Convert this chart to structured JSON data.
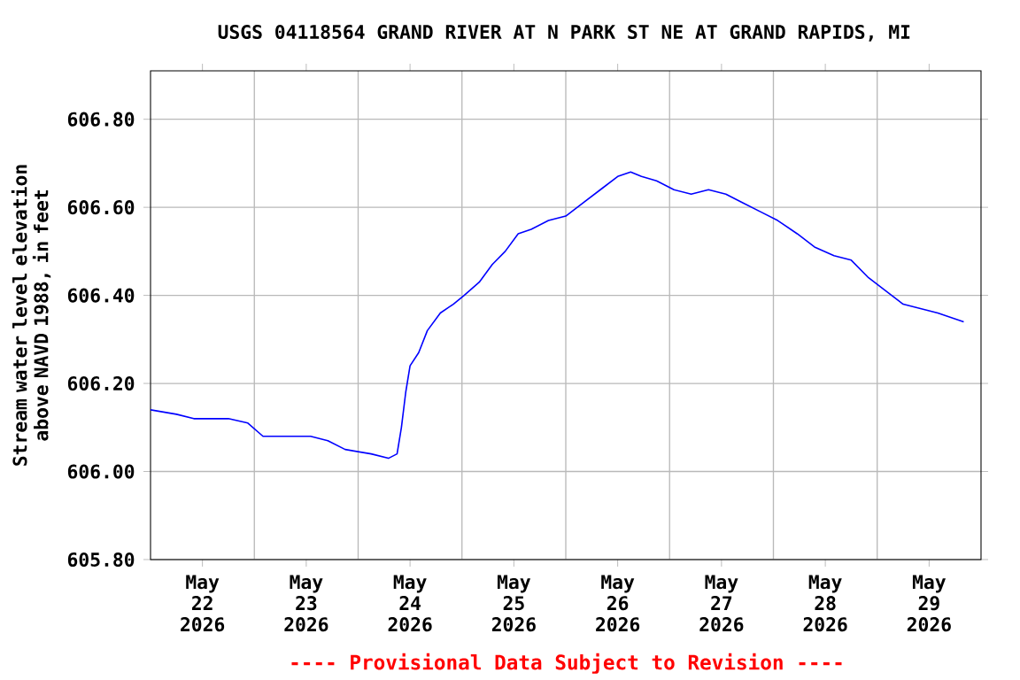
{
  "chart_data": {
    "type": "line",
    "title": "USGS 04118564 GRAND RIVER AT N PARK ST NE AT GRAND RAPIDS, MI",
    "ylabel": "Stream water level elevation above NAVD 1988, in feet",
    "annotations": [
      "---- Provisional Data Subject to Revision ----"
    ],
    "x": [
      "2026-05-22T00:00",
      "2026-05-22T06:00",
      "2026-05-22T10:00",
      "2026-05-22T18:00",
      "2026-05-22T22:30",
      "2026-05-23T02:00",
      "2026-05-23T07:00",
      "2026-05-23T13:00",
      "2026-05-23T17:00",
      "2026-05-23T21:00",
      "2026-05-24T03:00",
      "2026-05-24T07:00",
      "2026-05-24T09:00",
      "2026-05-24T10:00",
      "2026-05-24T11:00",
      "2026-05-24T12:00",
      "2026-05-24T14:00",
      "2026-05-24T16:00",
      "2026-05-24T19:00",
      "2026-05-24T22:00",
      "2026-05-25T00:30",
      "2026-05-25T04:00",
      "2026-05-25T07:00",
      "2026-05-25T10:00",
      "2026-05-25T13:00",
      "2026-05-25T16:00",
      "2026-05-25T20:00",
      "2026-05-26T00:00",
      "2026-05-26T04:00",
      "2026-05-26T08:00",
      "2026-05-26T12:00",
      "2026-05-26T15:00",
      "2026-05-26T17:30",
      "2026-05-26T21:00",
      "2026-05-27T01:00",
      "2026-05-27T05:00",
      "2026-05-27T09:00",
      "2026-05-27T13:00",
      "2026-05-27T17:00",
      "2026-05-27T21:00",
      "2026-05-28T01:00",
      "2026-05-28T05:30",
      "2026-05-28T09:30",
      "2026-05-28T14:00",
      "2026-05-28T18:00",
      "2026-05-28T22:00",
      "2026-05-29T02:00",
      "2026-05-29T06:00",
      "2026-05-29T10:00",
      "2026-05-29T14:00",
      "2026-05-29T17:00",
      "2026-05-29T20:00"
    ],
    "series": [
      {
        "color": "#0000ff",
        "values": [
          606.14,
          606.13,
          606.12,
          606.12,
          606.11,
          606.08,
          606.08,
          606.08,
          606.07,
          606.05,
          606.04,
          606.03,
          606.04,
          606.1,
          606.18,
          606.24,
          606.27,
          606.32,
          606.36,
          606.38,
          606.4,
          606.43,
          606.47,
          606.5,
          606.54,
          606.55,
          606.57,
          606.58,
          606.61,
          606.64,
          606.67,
          606.68,
          606.67,
          606.66,
          606.64,
          606.63,
          606.64,
          606.63,
          606.61,
          606.59,
          606.57,
          606.54,
          606.51,
          606.49,
          606.48,
          606.44,
          606.41,
          606.38,
          606.37,
          606.36,
          606.35,
          606.34
        ]
      }
    ],
    "xlim": [
      "2026-05-22T00:00",
      "2026-05-30T00:00"
    ],
    "xticks": [
      {
        "value": "2026-05-22T12:00",
        "label": "May 22 2026"
      },
      {
        "value": "2026-05-23T00:00",
        "label": null
      },
      {
        "value": "2026-05-23T12:00",
        "label": "May 23 2026"
      },
      {
        "value": "2026-05-24T00:00",
        "label": null
      },
      {
        "value": "2026-05-24T12:00",
        "label": "May 24 2026"
      },
      {
        "value": "2026-05-25T00:00",
        "label": null
      },
      {
        "value": "2026-05-25T12:00",
        "label": "May 25 2026"
      },
      {
        "value": "2026-05-26T00:00",
        "label": null
      },
      {
        "value": "2026-05-26T12:00",
        "label": "May 26 2026"
      },
      {
        "value": "2026-05-27T00:00",
        "label": null
      },
      {
        "value": "2026-05-27T12:00",
        "label": "May 27 2026"
      },
      {
        "value": "2026-05-28T00:00",
        "label": null
      },
      {
        "value": "2026-05-28T12:00",
        "label": "May 28 2026"
      },
      {
        "value": "2026-05-29T00:00",
        "label": null
      },
      {
        "value": "2026-05-29T12:00",
        "label": "May 29 2026"
      }
    ],
    "ylim": [
      605.8,
      606.91
    ],
    "yticks": [
      {
        "value": 605.8,
        "label": "605.80"
      },
      {
        "value": 606.0,
        "label": "606.00"
      },
      {
        "value": 606.2,
        "label": "606.20"
      },
      {
        "value": 606.4,
        "label": "606.40"
      },
      {
        "value": 606.6,
        "label": "606.60"
      },
      {
        "value": 606.8,
        "label": "606.80"
      }
    ],
    "grid": true,
    "marker": "none",
    "line_style": "solid"
  }
}
